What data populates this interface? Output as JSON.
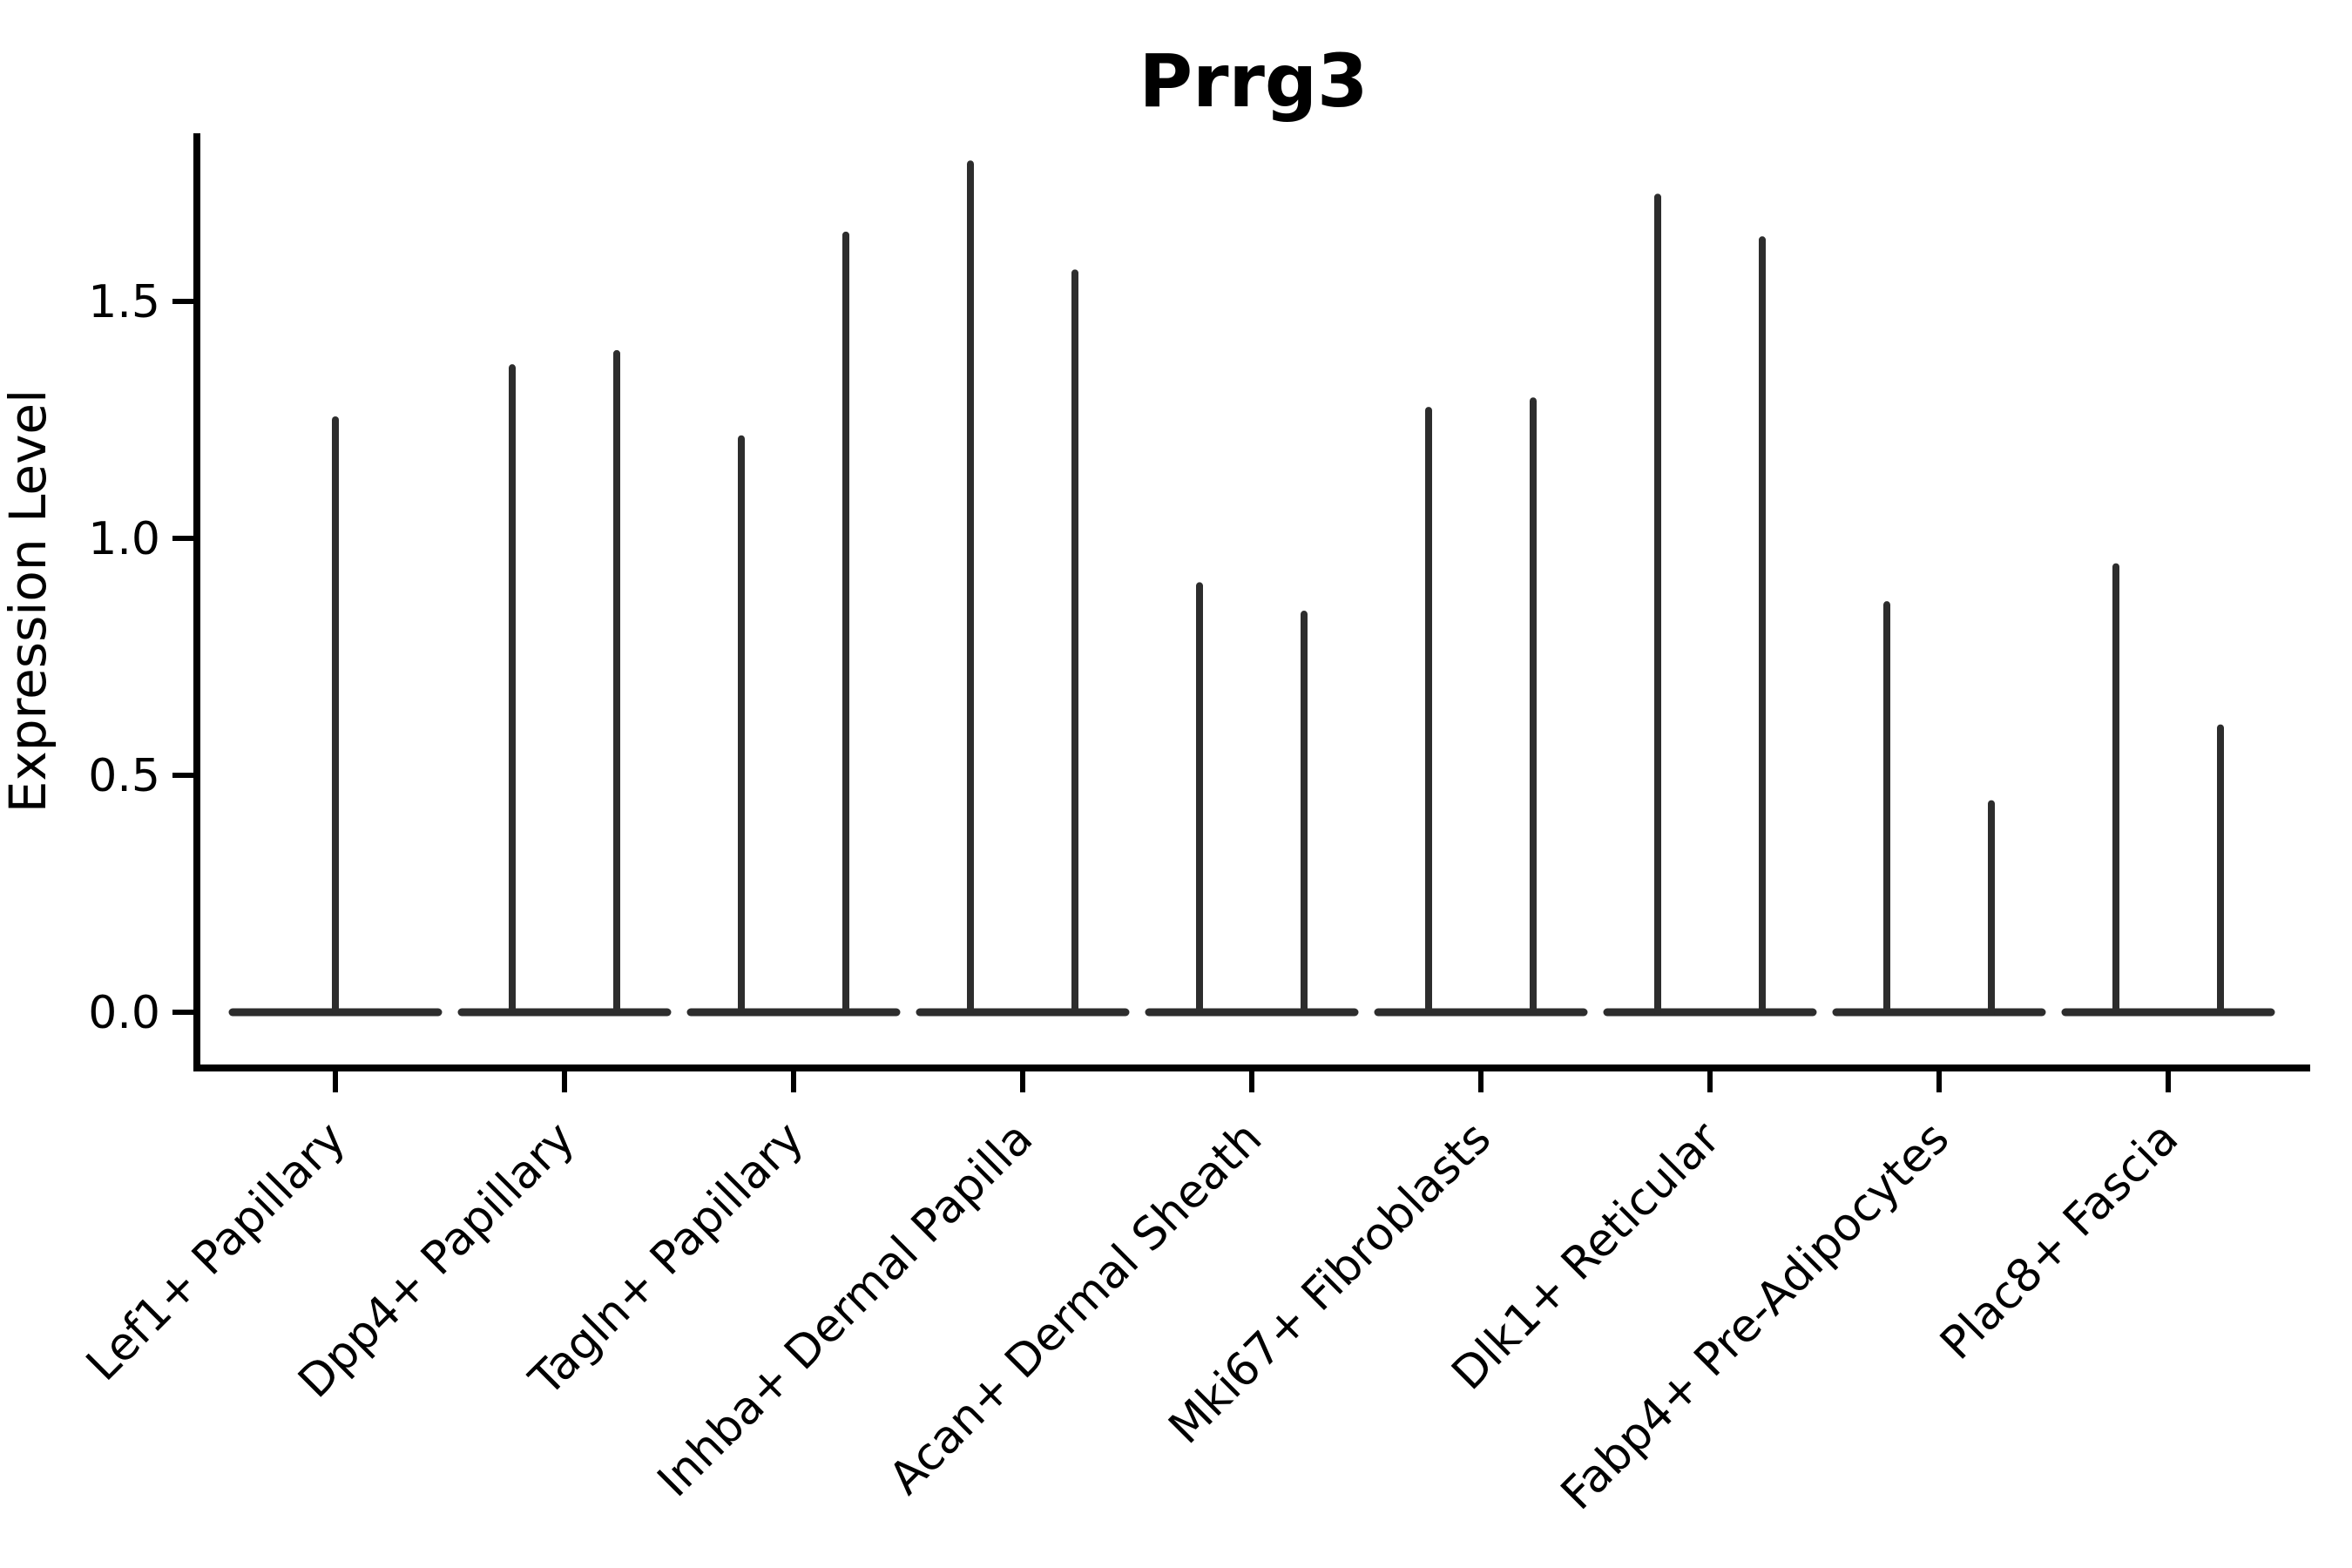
{
  "figure": {
    "background": "#ffffff"
  },
  "chart_data": {
    "type": "violin",
    "title": "Prrg3",
    "ylabel": "Expression Level",
    "xlabel": "",
    "yticks": [
      "0.0",
      "0.5",
      "1.0",
      "1.5"
    ],
    "ytick_values": [
      0.0,
      0.5,
      1.0,
      1.5
    ],
    "ylim": [
      -0.12,
      1.86
    ],
    "grid": false,
    "legend": false,
    "categories": [
      "Lef1+ Papillary",
      "Dpp4+ Papillary",
      "Tagln+ Papillary",
      "Inhba+ Dermal Papilla",
      "Acan+ Dermal Sheath",
      "Mki67+ Fibroblasts",
      "Dlk1+ Reticular",
      "Fabp4+ Pre-Adipocytes",
      "Plac8+ Fascia"
    ],
    "violins": [
      {
        "category": "Lef1+ Papillary",
        "peaks": [
          1.25
        ]
      },
      {
        "category": "Dpp4+ Papillary",
        "peaks": [
          1.36,
          1.39
        ]
      },
      {
        "category": "Tagln+ Papillary",
        "peaks": [
          1.21,
          1.64
        ]
      },
      {
        "category": "Inhba+ Dermal Papilla",
        "peaks": [
          1.79,
          1.56
        ]
      },
      {
        "category": "Acan+ Dermal Sheath",
        "peaks": [
          0.9,
          0.84
        ]
      },
      {
        "category": "Mki67+ Fibroblasts",
        "peaks": [
          1.27,
          1.29
        ]
      },
      {
        "category": "Dlk1+ Reticular",
        "peaks": [
          1.72,
          1.63
        ]
      },
      {
        "category": "Fabp4+ Pre-Adipocytes",
        "peaks": [
          0.86,
          0.44
        ]
      },
      {
        "category": "Plac8+ Fascia",
        "peaks": [
          0.94,
          0.6
        ]
      }
    ],
    "colors": {
      "violin": "#2d2d2d",
      "axis": "#000000",
      "text": "#000000"
    }
  }
}
